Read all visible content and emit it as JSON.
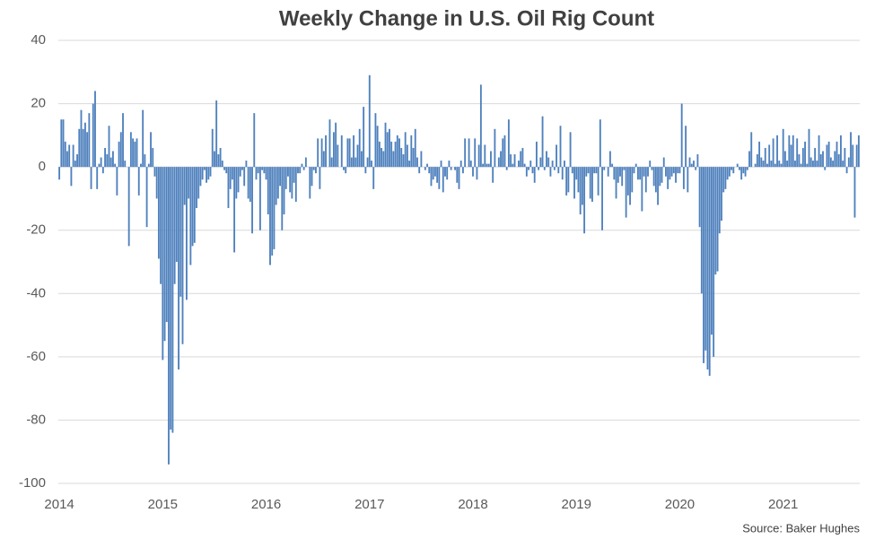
{
  "chart_data": {
    "type": "bar",
    "title": "Weekly Change in U.S. Oil Rig Count",
    "note": "Source: Baker Hughes",
    "color": "#4f81bd",
    "grid": true,
    "ylim": [
      -100,
      40
    ],
    "yticks": [
      40,
      20,
      0,
      -20,
      -40,
      -60,
      -80,
      -100
    ],
    "categories": [
      "2014",
      null,
      null,
      null,
      null,
      null,
      null,
      null,
      null,
      null,
      null,
      null,
      null,
      null,
      null,
      null,
      null,
      null,
      null,
      null,
      null,
      null,
      null,
      null,
      null,
      null,
      null,
      null,
      null,
      null,
      null,
      null,
      null,
      null,
      null,
      null,
      null,
      null,
      null,
      null,
      null,
      null,
      null,
      null,
      null,
      null,
      null,
      null,
      null,
      null,
      null,
      null,
      "2015",
      null,
      null,
      null,
      null,
      null,
      null,
      null,
      null,
      null,
      null,
      null,
      null,
      null,
      null,
      null,
      null,
      null,
      null,
      null,
      null,
      null,
      null,
      null,
      null,
      null,
      null,
      null,
      null,
      null,
      null,
      null,
      null,
      null,
      null,
      null,
      null,
      null,
      null,
      null,
      null,
      null,
      null,
      null,
      null,
      null,
      null,
      null,
      null,
      null,
      null,
      null,
      "2016",
      null,
      null,
      null,
      null,
      null,
      null,
      null,
      null,
      null,
      null,
      null,
      null,
      null,
      null,
      null,
      null,
      null,
      null,
      null,
      null,
      null,
      null,
      null,
      null,
      null,
      null,
      null,
      null,
      null,
      null,
      null,
      null,
      null,
      null,
      null,
      null,
      null,
      null,
      null,
      null,
      null,
      null,
      null,
      null,
      null,
      null,
      null,
      null,
      null,
      null,
      null,
      "2017",
      null,
      null,
      null,
      null,
      null,
      null,
      null,
      null,
      null,
      null,
      null,
      null,
      null,
      null,
      null,
      null,
      null,
      null,
      null,
      null,
      null,
      null,
      null,
      null,
      null,
      null,
      null,
      null,
      null,
      null,
      null,
      null,
      null,
      null,
      null,
      null,
      null,
      null,
      null,
      null,
      null,
      null,
      null,
      null,
      null,
      null,
      null,
      null,
      null,
      null,
      null,
      "2018",
      null,
      null,
      null,
      null,
      null,
      null,
      null,
      null,
      null,
      null,
      null,
      null,
      null,
      null,
      null,
      null,
      null,
      null,
      null,
      null,
      null,
      null,
      null,
      null,
      null,
      null,
      null,
      null,
      null,
      null,
      null,
      null,
      null,
      null,
      null,
      null,
      null,
      null,
      null,
      null,
      null,
      null,
      null,
      null,
      null,
      null,
      null,
      null,
      null,
      null,
      null,
      "2019",
      null,
      null,
      null,
      null,
      null,
      null,
      null,
      null,
      null,
      null,
      null,
      null,
      null,
      null,
      null,
      null,
      null,
      null,
      null,
      null,
      null,
      null,
      null,
      null,
      null,
      null,
      null,
      null,
      null,
      null,
      null,
      null,
      null,
      null,
      null,
      null,
      null,
      null,
      null,
      null,
      null,
      null,
      null,
      null,
      null,
      null,
      null,
      null,
      null,
      null,
      null,
      "2020",
      null,
      null,
      null,
      null,
      null,
      null,
      null,
      null,
      null,
      null,
      null,
      null,
      null,
      null,
      null,
      null,
      null,
      null,
      null,
      null,
      null,
      null,
      null,
      null,
      null,
      null,
      null,
      null,
      null,
      null,
      null,
      null,
      null,
      null,
      null,
      null,
      null,
      null,
      null,
      null,
      null,
      null,
      null,
      null,
      null,
      null,
      null,
      null,
      null,
      null,
      null,
      "2021",
      null,
      null,
      null,
      null,
      null,
      null,
      null,
      null,
      null,
      null,
      null,
      null,
      null,
      null,
      null,
      null,
      null,
      null,
      null,
      null,
      null,
      null,
      null,
      null,
      null,
      null,
      null,
      null,
      null,
      null,
      null,
      null,
      null,
      null,
      null,
      null,
      null,
      null
    ],
    "values": [
      -4,
      15,
      15,
      8,
      5,
      7,
      -6,
      7,
      2,
      4,
      12,
      18,
      12,
      14,
      11,
      17,
      -7,
      20,
      24,
      -7,
      1,
      3,
      -2,
      6,
      4,
      13,
      3,
      5,
      1,
      -9,
      8,
      11,
      17,
      2,
      0,
      -25,
      11,
      9,
      8,
      9,
      -9,
      1,
      18,
      4,
      -19,
      1,
      11,
      6,
      -3,
      -10,
      -29,
      -37,
      -61,
      -55,
      -49,
      -94,
      -83,
      -84,
      -37,
      -30,
      -64,
      -41,
      -56,
      -12,
      -42,
      -10,
      -31,
      -25,
      -24,
      -13,
      -10,
      -6,
      -4,
      -1,
      -5,
      -4,
      -3,
      12,
      5,
      21,
      4,
      6,
      2,
      -1,
      -2,
      -13,
      -7,
      -4,
      -27,
      -10,
      -8,
      -3,
      -1,
      -6,
      2,
      -10,
      -11,
      -21,
      17,
      -4,
      -2,
      -20,
      -1,
      -2,
      -4,
      -15,
      -31,
      -28,
      -26,
      -12,
      -10,
      -6,
      -20,
      -15,
      -7,
      -3,
      -8,
      -10,
      -5,
      -11,
      -2,
      -2,
      1,
      -1,
      3,
      0,
      -10,
      -6,
      -1,
      -2,
      9,
      -7,
      9,
      5,
      10,
      0,
      15,
      3,
      11,
      14,
      7,
      0,
      10,
      -1,
      -2,
      9,
      9,
      3,
      10,
      3,
      7,
      12,
      5,
      19,
      -2,
      3,
      29,
      2,
      -7,
      17,
      13,
      8,
      6,
      5,
      14,
      11,
      12,
      8,
      5,
      8,
      10,
      9,
      6,
      4,
      11,
      7,
      2,
      10,
      6,
      12,
      3,
      -2,
      5,
      0,
      -1,
      1,
      -2,
      -6,
      -4,
      -3,
      -5,
      -7,
      2,
      -8,
      -3,
      -4,
      2,
      -1,
      0,
      -1,
      -5,
      -7,
      2,
      -2,
      9,
      0,
      9,
      2,
      -3,
      9,
      -4,
      7,
      26,
      1,
      7,
      1,
      1,
      5,
      -5,
      12,
      0,
      3,
      5,
      9,
      10,
      -1,
      15,
      4,
      1,
      4,
      0,
      2,
      5,
      6,
      1,
      -3,
      -1,
      2,
      -2,
      -5,
      8,
      -1,
      3,
      16,
      -1,
      5,
      3,
      -3,
      2,
      -1,
      7,
      -2,
      13,
      -4,
      2,
      -9,
      -8,
      11,
      -2,
      -10,
      -4,
      -8,
      -15,
      -12,
      -21,
      -3,
      -2,
      -10,
      -11,
      -2,
      -2,
      -9,
      15,
      -20,
      -1,
      0,
      -3,
      5,
      1,
      -4,
      -10,
      -5,
      -3,
      -6,
      -1,
      -16,
      -9,
      -12,
      -8,
      -2,
      1,
      -4,
      -4,
      -14,
      -3,
      -8,
      -3,
      2,
      -1,
      -6,
      -8,
      -12,
      -6,
      -5,
      3,
      -3,
      -7,
      -4,
      -3,
      -2,
      -5,
      -2,
      -2,
      20,
      -7,
      13,
      -8,
      3,
      1,
      2,
      -1,
      4,
      -19,
      -40,
      -62,
      -58,
      -64,
      -66,
      -53,
      -60,
      -34,
      -33,
      -21,
      -17,
      -8,
      -7,
      -4,
      -3,
      -1,
      -2,
      0,
      1,
      -1,
      -4,
      -2,
      -3,
      -1,
      5,
      11,
      0,
      1,
      4,
      8,
      3,
      2,
      6,
      1,
      7,
      2,
      9,
      1,
      10,
      2,
      1,
      12,
      5,
      2,
      10,
      7,
      10,
      2,
      9,
      4,
      1,
      6,
      8,
      1,
      12,
      3,
      2,
      6,
      2,
      10,
      4,
      5,
      -1,
      7,
      8,
      3,
      2,
      5,
      8,
      4,
      10,
      2,
      6,
      -2,
      3,
      11,
      7,
      -16,
      7,
      10
    ]
  }
}
